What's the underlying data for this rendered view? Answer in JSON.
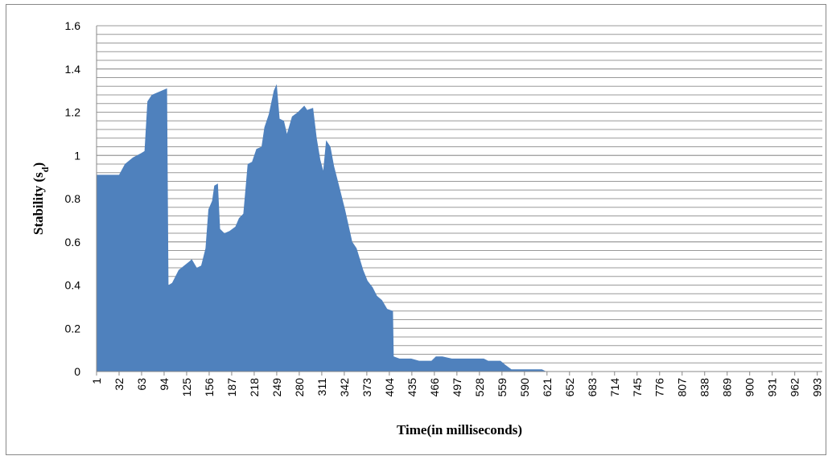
{
  "chart_data": {
    "type": "area",
    "x_label": "Time(in milliseconds)",
    "y_label": {
      "text": "Stability (s",
      "subscript": "d",
      "suffix": ")"
    },
    "color": "#4f81bd",
    "xlim": [
      1,
      1000
    ],
    "ylim": [
      0,
      1.6
    ],
    "xticks": [
      1,
      32,
      63,
      94,
      125,
      156,
      187,
      218,
      249,
      280,
      311,
      342,
      373,
      404,
      435,
      466,
      497,
      528,
      559,
      590,
      621,
      652,
      683,
      714,
      745,
      776,
      807,
      838,
      869,
      900,
      931,
      962,
      993
    ],
    "yticks": [
      0,
      0.2,
      0.4,
      0.6,
      0.8,
      1,
      1.2,
      1.4,
      1.6
    ],
    "grid": true,
    "grid_minor_step": 0.04,
    "x": [
      1,
      32,
      40,
      51,
      62,
      67,
      71,
      77,
      98,
      100,
      105,
      114,
      129,
      132,
      139,
      145,
      151,
      155,
      160,
      163,
      168,
      171,
      177,
      184,
      192,
      197,
      203,
      209,
      215,
      221,
      228,
      232,
      238,
      245,
      249,
      253,
      259,
      263,
      270,
      278,
      287,
      291,
      299,
      304,
      309,
      313,
      317,
      323,
      328,
      334,
      343,
      353,
      359,
      368,
      374,
      381,
      387,
      394,
      401,
      409,
      410,
      418,
      434,
      445,
      462,
      468,
      477,
      490,
      518,
      534,
      540,
      557,
      564,
      572,
      614,
      620,
      1000
    ],
    "values": [
      0.91,
      0.91,
      0.96,
      0.99,
      1.01,
      1.02,
      1.25,
      1.28,
      1.31,
      0.4,
      0.41,
      0.47,
      0.51,
      0.52,
      0.48,
      0.49,
      0.57,
      0.75,
      0.79,
      0.86,
      0.87,
      0.66,
      0.64,
      0.65,
      0.67,
      0.71,
      0.73,
      0.96,
      0.97,
      1.03,
      1.04,
      1.13,
      1.19,
      1.3,
      1.33,
      1.17,
      1.16,
      1.1,
      1.18,
      1.2,
      1.23,
      1.21,
      1.22,
      1.08,
      0.98,
      0.93,
      1.07,
      1.04,
      0.95,
      0.87,
      0.75,
      0.6,
      0.57,
      0.47,
      0.42,
      0.39,
      0.35,
      0.33,
      0.29,
      0.28,
      0.07,
      0.06,
      0.06,
      0.05,
      0.05,
      0.07,
      0.07,
      0.06,
      0.06,
      0.06,
      0.05,
      0.05,
      0.03,
      0.01,
      0.01,
      0,
      0
    ]
  }
}
